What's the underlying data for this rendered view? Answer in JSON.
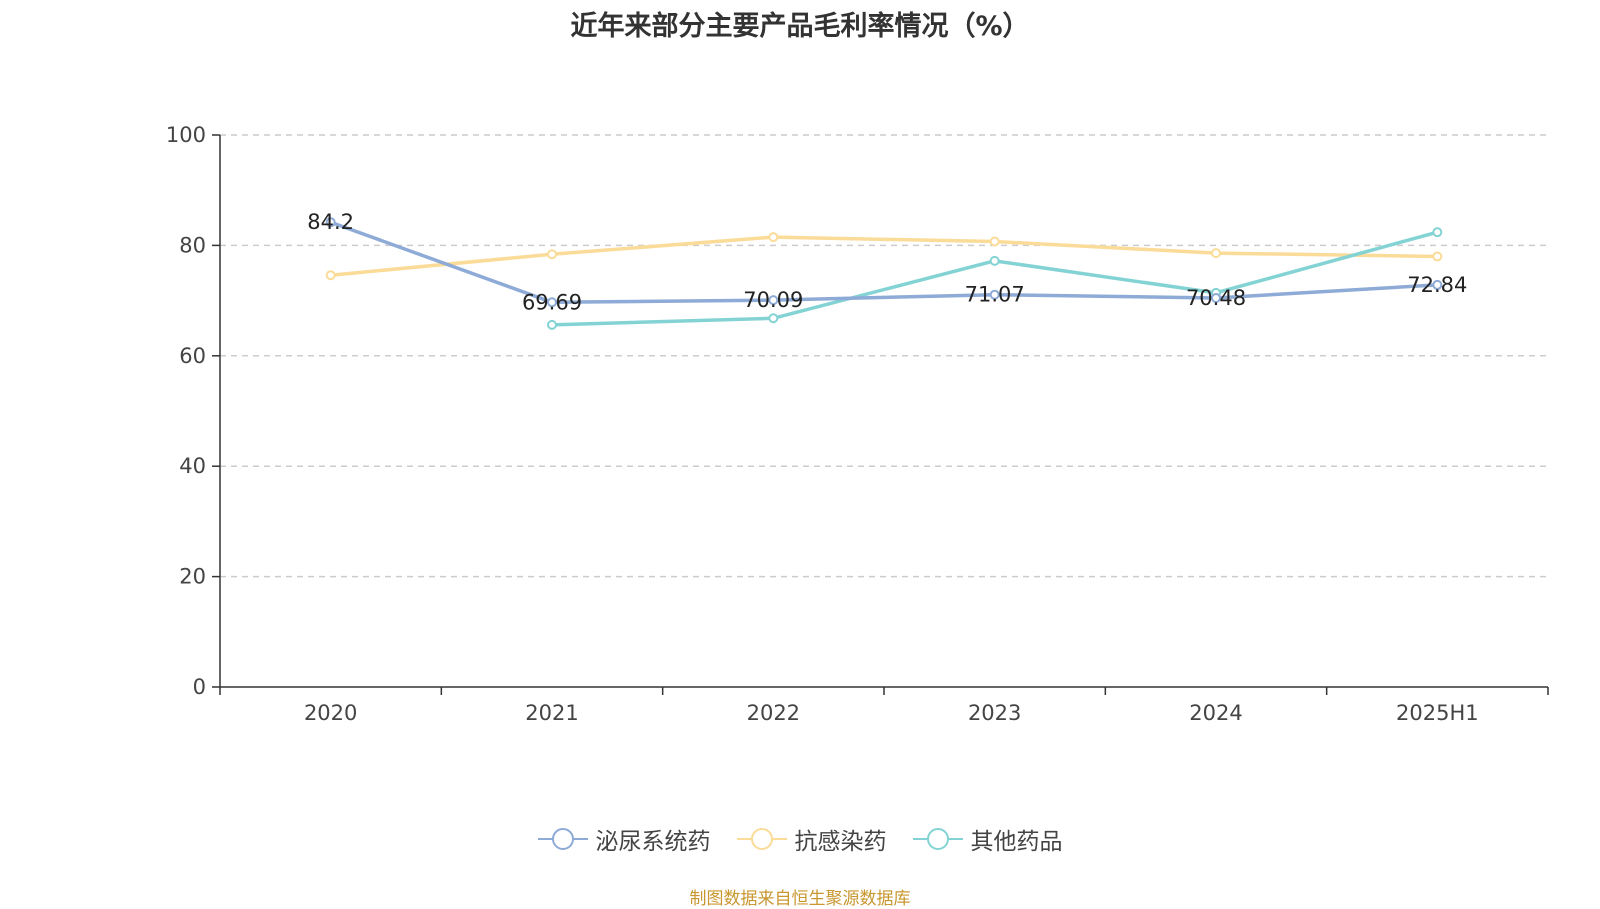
{
  "chart_data": {
    "type": "line",
    "title": "近年来部分主要产品毛利率情况（%）",
    "categories": [
      "2020",
      "2021",
      "2022",
      "2023",
      "2024",
      "2025H1"
    ],
    "ylim": [
      0,
      100
    ],
    "yticks": [
      0,
      20,
      40,
      60,
      80,
      100
    ],
    "grid": true,
    "legend_position": "bottom",
    "series": [
      {
        "name": "泌尿系统药",
        "color": "#8eaad6",
        "values": [
          84.2,
          69.69,
          70.09,
          71.07,
          70.48,
          72.84
        ],
        "labels": [
          "84.2",
          "69.69",
          "70.09",
          "71.07",
          "70.48",
          "72.84"
        ]
      },
      {
        "name": "抗感染药",
        "color": "#fadb98",
        "values": [
          74.6,
          78.4,
          81.5,
          80.7,
          78.6,
          78.0
        ]
      },
      {
        "name": "其他药品",
        "color": "#84d3d4",
        "values": [
          null,
          65.6,
          66.8,
          77.2,
          71.4,
          82.4
        ]
      }
    ]
  },
  "footer": {
    "source": "制图数据来自恒生聚源数据库"
  }
}
